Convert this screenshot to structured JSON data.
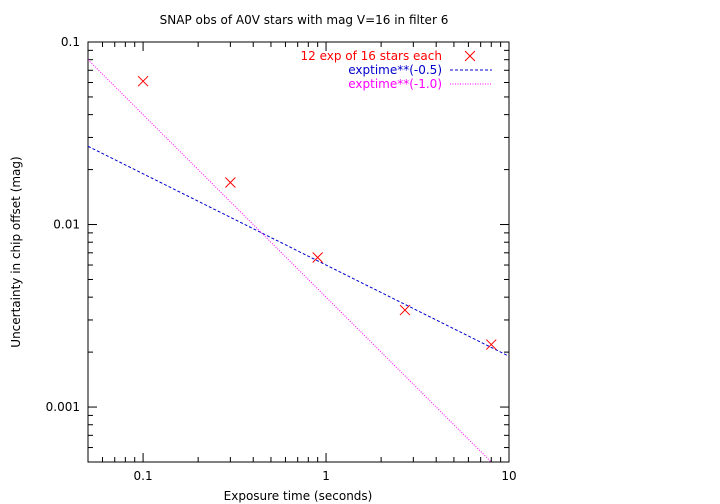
{
  "chart_data": {
    "type": "scatter",
    "title": "SNAP obs of A0V stars with mag V=16 in filter 6",
    "xlabel": "Exposure time (seconds)",
    "ylabel": "Uncertainty in chip offset (mag)",
    "xscale": "log",
    "yscale": "log",
    "xlim": [
      0.05,
      10
    ],
    "ylim": [
      0.0005,
      0.1
    ],
    "grid": false,
    "legend_position": "top-right",
    "x_ticks": [
      {
        "value": 0.1,
        "label": "0.1"
      },
      {
        "value": 1,
        "label": "1"
      },
      {
        "value": 10,
        "label": "10"
      }
    ],
    "y_ticks": [
      {
        "value": 0.001,
        "label": "0.001"
      },
      {
        "value": 0.01,
        "label": "0.01"
      },
      {
        "value": 0.1,
        "label": "0.1"
      }
    ],
    "series": [
      {
        "name": "12 exp of 16 stars each",
        "type": "scatter",
        "marker": "x",
        "color": "#ff0000",
        "points": [
          {
            "x": 0.1,
            "y": 0.061
          },
          {
            "x": 0.3,
            "y": 0.017
          },
          {
            "x": 0.9,
            "y": 0.0066
          },
          {
            "x": 2.7,
            "y": 0.0034
          },
          {
            "x": 8.0,
            "y": 0.0022
          }
        ]
      },
      {
        "name": "exptime**(-0.5)",
        "type": "line",
        "style": "dashed",
        "color": "#0000cc",
        "coefficient": 0.006,
        "exponent": -0.5
      },
      {
        "name": "exptime**(-1.0)",
        "type": "line",
        "style": "dotted",
        "color": "#ff00ff",
        "coefficient": 0.004,
        "exponent": -1.0
      }
    ]
  }
}
